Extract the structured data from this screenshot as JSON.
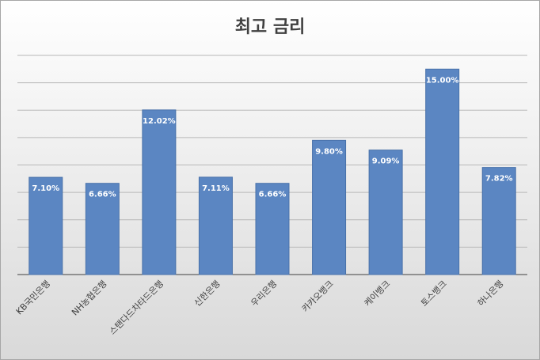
{
  "chart_data": {
    "type": "bar",
    "title": "최고 금리",
    "categories": [
      "KB국민은행",
      "NH농협은행",
      "스탠다드차타드은행",
      "신한은행",
      "우리은행",
      "카카오뱅크",
      "케이뱅크",
      "토스뱅크",
      "하나은행"
    ],
    "values": [
      7.1,
      6.66,
      12.02,
      7.11,
      6.66,
      9.8,
      9.09,
      15,
      7.82
    ],
    "value_labels": [
      "7.10%",
      "6.66%",
      "12.02%",
      "7.11%",
      "6.66%",
      "9.80%",
      "9.09%",
      "15.00%",
      "7.82%"
    ],
    "color": "#5b86c2",
    "ylim": [
      0,
      16
    ],
    "yticks": [
      0,
      2,
      4,
      6,
      8,
      10,
      12,
      14,
      16
    ],
    "grid": true
  }
}
